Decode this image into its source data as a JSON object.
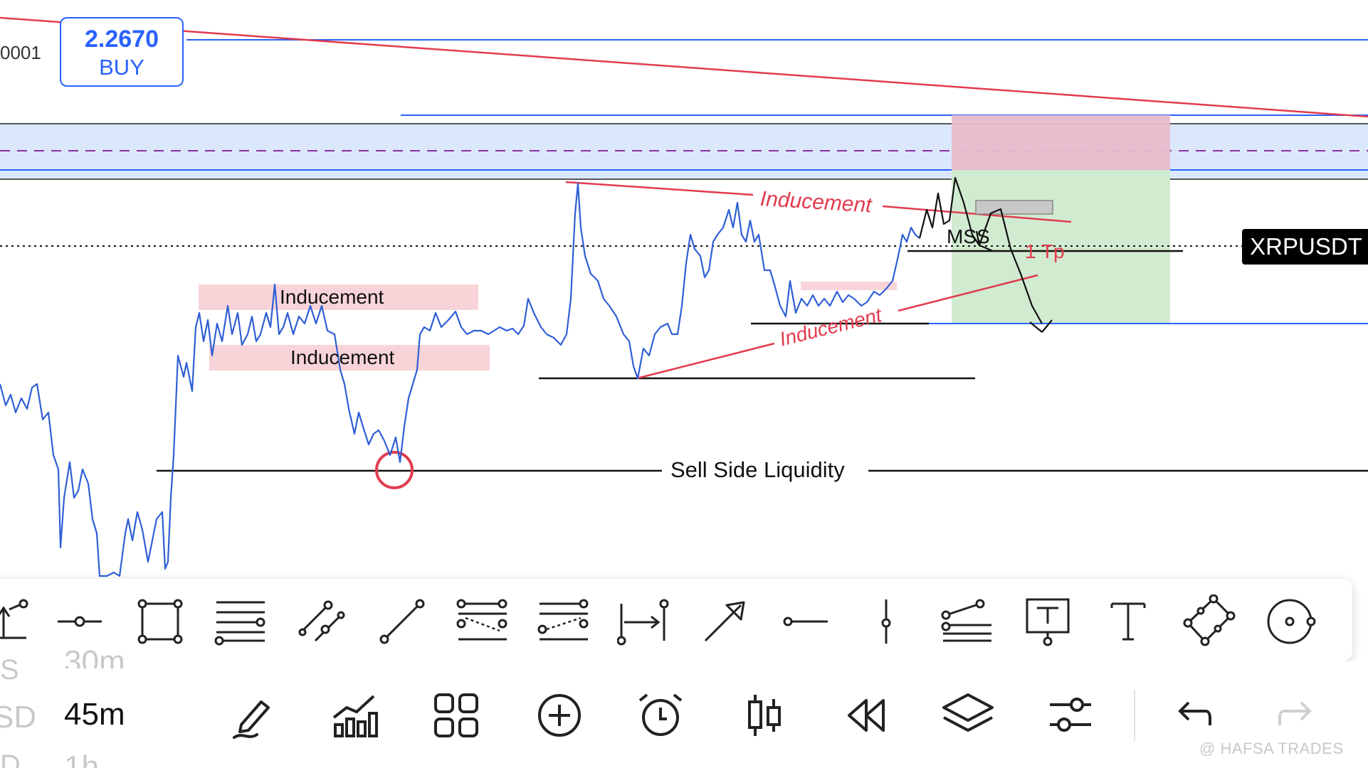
{
  "price_tag": {
    "value": "2.2670",
    "label": "BUY"
  },
  "left_axis_fragment": "0001",
  "symbol": "XRPUSDT",
  "annotations": {
    "inducement_top_right": "Inducement",
    "inducement_box_1": "Inducement",
    "inducement_box_2": "Inducement",
    "inducement_trend": "Inducement",
    "mss": "MSS",
    "tp": "1 Tp",
    "sell_side_liquidity": "Sell Side Liquidity"
  },
  "drawing_tools": [
    {
      "name": "ray-tool-icon"
    },
    {
      "name": "horizontal-ray-icon"
    },
    {
      "name": "rectangle-icon"
    },
    {
      "name": "fib-retracement-icon"
    },
    {
      "name": "parallel-channel-icon"
    },
    {
      "name": "trend-line-icon"
    },
    {
      "name": "fib-channel-icon"
    },
    {
      "name": "pitchfork-icon"
    },
    {
      "name": "date-range-icon"
    },
    {
      "name": "arrow-icon"
    },
    {
      "name": "horizontal-line-icon"
    },
    {
      "name": "vertical-line-icon"
    },
    {
      "name": "fib-fan-icon"
    },
    {
      "name": "text-note-icon"
    },
    {
      "name": "text-icon"
    },
    {
      "name": "rotated-rectangle-icon"
    },
    {
      "name": "circle-icon"
    }
  ],
  "timeframes": {
    "prev_2": "30m",
    "current": "45m",
    "next_2": "1h",
    "prev_partial": "S",
    "side_partial": "SD",
    "next_partial": "D"
  },
  "bottom_actions": [
    {
      "name": "brush-icon"
    },
    {
      "name": "indicators-icon"
    },
    {
      "name": "layouts-icon"
    },
    {
      "name": "add-icon"
    },
    {
      "name": "alarm-icon"
    },
    {
      "name": "candles-icon"
    },
    {
      "name": "rewind-icon"
    },
    {
      "name": "layers-icon"
    },
    {
      "name": "settings-sliders-icon"
    },
    {
      "name": "undo-icon"
    },
    {
      "name": "redo-icon"
    }
  ],
  "watermark": "@ HAFSA TRADES",
  "colors": {
    "accent_blue": "#2962ff",
    "bear_red": "#e23b4e",
    "zone_blue": "#dbe8fb",
    "stop_red": "#e7bccb",
    "target_green": "#d1ebd1",
    "box_pink": "#f8d4d8"
  }
}
